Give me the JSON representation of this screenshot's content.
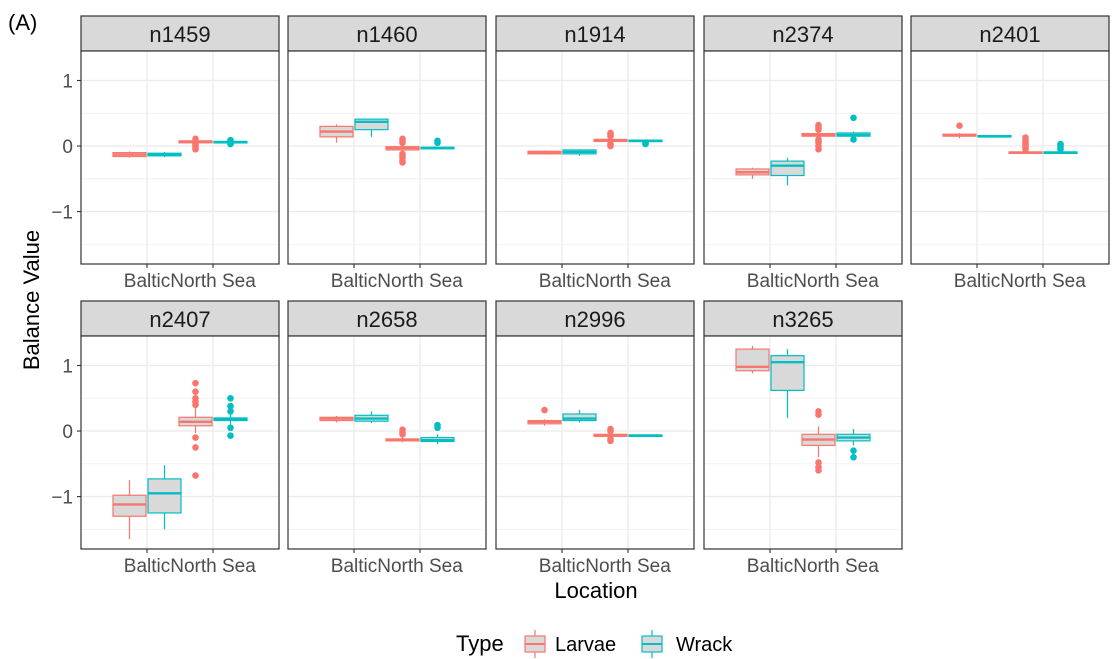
{
  "panel_label": "(A)",
  "colors": {
    "larvae": "#F8766D",
    "wrack": "#00BFC4",
    "box_fill": "#D9D9D9",
    "strip_bg": "#D9D9D9",
    "grid": "#EBEBEB"
  },
  "legend": {
    "title": "Type",
    "items": [
      "Larvae",
      "Wrack"
    ]
  },
  "chart_data": {
    "type": "boxplot",
    "facet_by": "node",
    "xlabel": "Location",
    "ylabel": "Balance Value",
    "categories": [
      "Baltic",
      "North Sea"
    ],
    "series_names": [
      "Larvae",
      "Wrack"
    ],
    "ylim": [
      -1.8,
      1.45
    ],
    "yticks": [
      -1,
      0,
      1
    ],
    "yticklabels": [
      "−1",
      "0",
      "1"
    ],
    "grid": true,
    "legend_position": "bottom",
    "panels": [
      {
        "title": "n1459",
        "boxes": [
          {
            "location": "Baltic",
            "type": "Larvae",
            "q1": -0.16,
            "median": -0.13,
            "q3": -0.1,
            "whisker_low": -0.18,
            "whisker_high": -0.08,
            "outliers": []
          },
          {
            "location": "Baltic",
            "type": "Wrack",
            "q1": -0.15,
            "median": -0.13,
            "q3": -0.11,
            "whisker_low": -0.17,
            "whisker_high": -0.09,
            "outliers": []
          },
          {
            "location": "North Sea",
            "type": "Larvae",
            "q1": 0.05,
            "median": 0.06,
            "q3": 0.08,
            "whisker_low": 0.02,
            "whisker_high": 0.1,
            "outliers": [
              -0.05,
              -0.03,
              0.0,
              0.02,
              0.11
            ]
          },
          {
            "location": "North Sea",
            "type": "Wrack",
            "q1": 0.05,
            "median": 0.06,
            "q3": 0.07,
            "whisker_low": 0.04,
            "whisker_high": 0.08,
            "outliers": [
              0.03,
              0.09
            ]
          }
        ]
      },
      {
        "title": "n1460",
        "boxes": [
          {
            "location": "Baltic",
            "type": "Larvae",
            "q1": 0.14,
            "median": 0.22,
            "q3": 0.3,
            "whisker_low": 0.05,
            "whisker_high": 0.33,
            "outliers": []
          },
          {
            "location": "Baltic",
            "type": "Wrack",
            "q1": 0.25,
            "median": 0.37,
            "q3": 0.41,
            "whisker_low": 0.14,
            "whisker_high": 0.42,
            "outliers": []
          },
          {
            "location": "North Sea",
            "type": "Larvae",
            "q1": -0.06,
            "median": -0.03,
            "q3": -0.01,
            "whisker_low": -0.1,
            "whisker_high": 0.02,
            "outliers": [
              -0.25,
              -0.22,
              -0.18,
              -0.15,
              -0.12,
              0.05,
              0.08,
              0.11
            ]
          },
          {
            "location": "North Sea",
            "type": "Wrack",
            "q1": -0.04,
            "median": -0.03,
            "q3": -0.02,
            "whisker_low": -0.05,
            "whisker_high": -0.01,
            "outliers": [
              0.05,
              0.08
            ]
          }
        ]
      },
      {
        "title": "n1914",
        "boxes": [
          {
            "location": "Baltic",
            "type": "Larvae",
            "q1": -0.12,
            "median": -0.1,
            "q3": -0.08,
            "whisker_low": -0.13,
            "whisker_high": -0.07,
            "outliers": []
          },
          {
            "location": "Baltic",
            "type": "Wrack",
            "q1": -0.12,
            "median": -0.09,
            "q3": -0.06,
            "whisker_low": -0.15,
            "whisker_high": -0.05,
            "outliers": []
          },
          {
            "location": "North Sea",
            "type": "Larvae",
            "q1": 0.07,
            "median": 0.09,
            "q3": 0.1,
            "whisker_low": 0.05,
            "whisker_high": 0.12,
            "outliers": [
              0.0,
              0.03,
              0.15,
              0.18,
              0.2
            ]
          },
          {
            "location": "North Sea",
            "type": "Wrack",
            "q1": 0.07,
            "median": 0.08,
            "q3": 0.09,
            "whisker_low": 0.06,
            "whisker_high": 0.1,
            "outliers": [
              0.03,
              0.05
            ]
          }
        ]
      },
      {
        "title": "n2374",
        "boxes": [
          {
            "location": "Baltic",
            "type": "Larvae",
            "q1": -0.44,
            "median": -0.4,
            "q3": -0.35,
            "whisker_low": -0.5,
            "whisker_high": -0.33,
            "outliers": []
          },
          {
            "location": "Baltic",
            "type": "Wrack",
            "q1": -0.45,
            "median": -0.3,
            "q3": -0.23,
            "whisker_low": -0.6,
            "whisker_high": -0.18,
            "outliers": []
          },
          {
            "location": "North Sea",
            "type": "Larvae",
            "q1": 0.15,
            "median": 0.17,
            "q3": 0.19,
            "whisker_low": 0.12,
            "whisker_high": 0.22,
            "outliers": [
              -0.05,
              0.0,
              0.05,
              0.08,
              0.1,
              0.25,
              0.28,
              0.32
            ]
          },
          {
            "location": "North Sea",
            "type": "Wrack",
            "q1": 0.15,
            "median": 0.17,
            "q3": 0.2,
            "whisker_low": 0.13,
            "whisker_high": 0.22,
            "outliers": [
              0.1,
              0.43
            ]
          }
        ]
      },
      {
        "title": "n2401",
        "boxes": [
          {
            "location": "Baltic",
            "type": "Larvae",
            "q1": 0.15,
            "median": 0.17,
            "q3": 0.18,
            "whisker_low": 0.12,
            "whisker_high": 0.2,
            "outliers": [
              0.31
            ]
          },
          {
            "location": "Baltic",
            "type": "Wrack",
            "q1": 0.14,
            "median": 0.15,
            "q3": 0.16,
            "whisker_low": 0.13,
            "whisker_high": 0.17,
            "outliers": []
          },
          {
            "location": "North Sea",
            "type": "Larvae",
            "q1": -0.11,
            "median": -0.1,
            "q3": -0.09,
            "whisker_low": -0.12,
            "whisker_high": -0.08,
            "outliers": [
              -0.05,
              -0.02,
              0.0,
              0.03,
              0.06,
              0.09,
              0.13
            ]
          },
          {
            "location": "North Sea",
            "type": "Wrack",
            "q1": -0.11,
            "median": -0.1,
            "q3": -0.09,
            "whisker_low": -0.12,
            "whisker_high": -0.08,
            "outliers": [
              -0.05,
              -0.02,
              0.01,
              0.03
            ]
          }
        ]
      },
      {
        "title": "n2407",
        "boxes": [
          {
            "location": "Baltic",
            "type": "Larvae",
            "q1": -1.3,
            "median": -1.12,
            "q3": -0.98,
            "whisker_low": -1.65,
            "whisker_high": -0.75,
            "outliers": []
          },
          {
            "location": "Baltic",
            "type": "Wrack",
            "q1": -1.25,
            "median": -0.95,
            "q3": -0.73,
            "whisker_low": -1.5,
            "whisker_high": -0.52,
            "outliers": []
          },
          {
            "location": "North Sea",
            "type": "Larvae",
            "q1": 0.08,
            "median": 0.14,
            "q3": 0.21,
            "whisker_low": -0.03,
            "whisker_high": 0.35,
            "outliers": [
              -0.68,
              -0.25,
              -0.1,
              0.4,
              0.45,
              0.5,
              0.6,
              0.73
            ]
          },
          {
            "location": "North Sea",
            "type": "Wrack",
            "q1": 0.16,
            "median": 0.18,
            "q3": 0.2,
            "whisker_low": 0.1,
            "whisker_high": 0.26,
            "outliers": [
              -0.07,
              0.05,
              0.3,
              0.38,
              0.5
            ]
          }
        ]
      },
      {
        "title": "n2658",
        "boxes": [
          {
            "location": "Baltic",
            "type": "Larvae",
            "q1": 0.16,
            "median": 0.19,
            "q3": 0.21,
            "whisker_low": 0.13,
            "whisker_high": 0.23,
            "outliers": []
          },
          {
            "location": "Baltic",
            "type": "Wrack",
            "q1": 0.15,
            "median": 0.19,
            "q3": 0.24,
            "whisker_low": 0.12,
            "whisker_high": 0.3,
            "outliers": []
          },
          {
            "location": "North Sea",
            "type": "Larvae",
            "q1": -0.15,
            "median": -0.14,
            "q3": -0.12,
            "whisker_low": -0.17,
            "whisker_high": -0.1,
            "outliers": [
              -0.05,
              -0.02,
              0.02
            ]
          },
          {
            "location": "North Sea",
            "type": "Wrack",
            "q1": -0.16,
            "median": -0.14,
            "q3": -0.1,
            "whisker_low": -0.2,
            "whisker_high": -0.05,
            "outliers": [
              0.05,
              0.09
            ]
          }
        ]
      },
      {
        "title": "n2996",
        "boxes": [
          {
            "location": "Baltic",
            "type": "Larvae",
            "q1": 0.11,
            "median": 0.14,
            "q3": 0.16,
            "whisker_low": 0.08,
            "whisker_high": 0.18,
            "outliers": [
              0.32
            ]
          },
          {
            "location": "Baltic",
            "type": "Wrack",
            "q1": 0.16,
            "median": 0.19,
            "q3": 0.26,
            "whisker_low": 0.13,
            "whisker_high": 0.32,
            "outliers": []
          },
          {
            "location": "North Sea",
            "type": "Larvae",
            "q1": -0.08,
            "median": -0.07,
            "q3": -0.05,
            "whisker_low": -0.1,
            "whisker_high": -0.03,
            "outliers": [
              -0.15,
              -0.12,
              0.0,
              0.03
            ]
          },
          {
            "location": "North Sea",
            "type": "Wrack",
            "q1": -0.08,
            "median": -0.07,
            "q3": -0.06,
            "whisker_low": -0.09,
            "whisker_high": -0.05,
            "outliers": []
          }
        ]
      },
      {
        "title": "n3265",
        "boxes": [
          {
            "location": "Baltic",
            "type": "Larvae",
            "q1": 0.92,
            "median": 0.98,
            "q3": 1.25,
            "whisker_low": 0.88,
            "whisker_high": 1.3,
            "outliers": []
          },
          {
            "location": "Baltic",
            "type": "Wrack",
            "q1": 0.62,
            "median": 1.05,
            "q3": 1.15,
            "whisker_low": 0.2,
            "whisker_high": 1.25,
            "outliers": []
          },
          {
            "location": "North Sea",
            "type": "Larvae",
            "q1": -0.22,
            "median": -0.13,
            "q3": -0.05,
            "whisker_low": -0.4,
            "whisker_high": 0.07,
            "outliers": [
              -0.6,
              -0.55,
              -0.48,
              0.25,
              0.3
            ]
          },
          {
            "location": "North Sea",
            "type": "Wrack",
            "q1": -0.15,
            "median": -0.1,
            "q3": -0.05,
            "whisker_low": -0.22,
            "whisker_high": 0.03,
            "outliers": [
              -0.4,
              -0.3
            ]
          }
        ]
      }
    ]
  }
}
